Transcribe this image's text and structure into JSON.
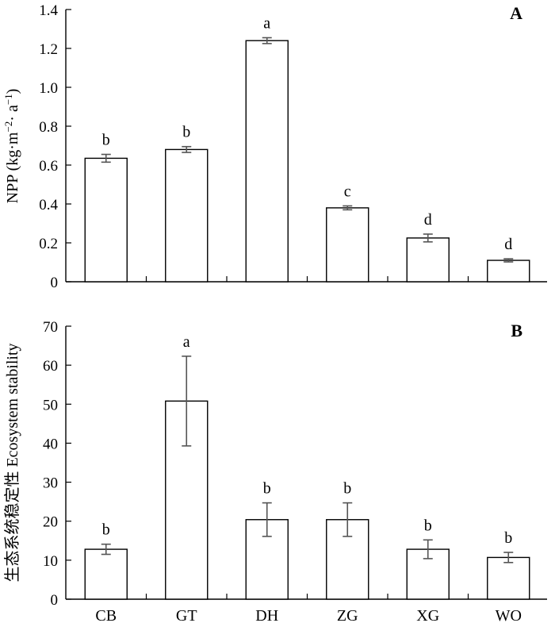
{
  "chart_data": [
    {
      "type": "bar",
      "panel_label": "A",
      "ylabel_parts": [
        "NPP (kg·m",
        "−2",
        "· a",
        "−1",
        ")"
      ],
      "categories": [
        "CB",
        "GT",
        "DH",
        "ZG",
        "XG",
        "WO"
      ],
      "values": [
        0.635,
        0.68,
        1.24,
        0.38,
        0.225,
        0.11
      ],
      "errors": [
        0.02,
        0.015,
        0.015,
        0.01,
        0.02,
        0.008
      ],
      "significance": [
        "b",
        "b",
        "a",
        "c",
        "d",
        "d"
      ],
      "ylim": [
        0,
        1.4
      ],
      "yticks": [
        "0",
        "0.2",
        "0.4",
        "0.6",
        "0.8",
        "1.0",
        "1.2",
        "1.4"
      ],
      "grid": false
    },
    {
      "type": "bar",
      "panel_label": "B",
      "ylabel": "生态系统稳定性 Ecosystem stability",
      "categories": [
        "CB",
        "GT",
        "DH",
        "ZG",
        "XG",
        "WO"
      ],
      "values": [
        12.8,
        50.8,
        20.4,
        20.4,
        12.8,
        10.7
      ],
      "errors": [
        1.3,
        11.5,
        4.3,
        4.3,
        2.4,
        1.3
      ],
      "significance": [
        "b",
        "a",
        "b",
        "b",
        "b",
        "b"
      ],
      "ylim": [
        0,
        70
      ],
      "yticks": [
        "0",
        "10",
        "20",
        "30",
        "40",
        "50",
        "60",
        "70"
      ],
      "grid": false
    }
  ]
}
